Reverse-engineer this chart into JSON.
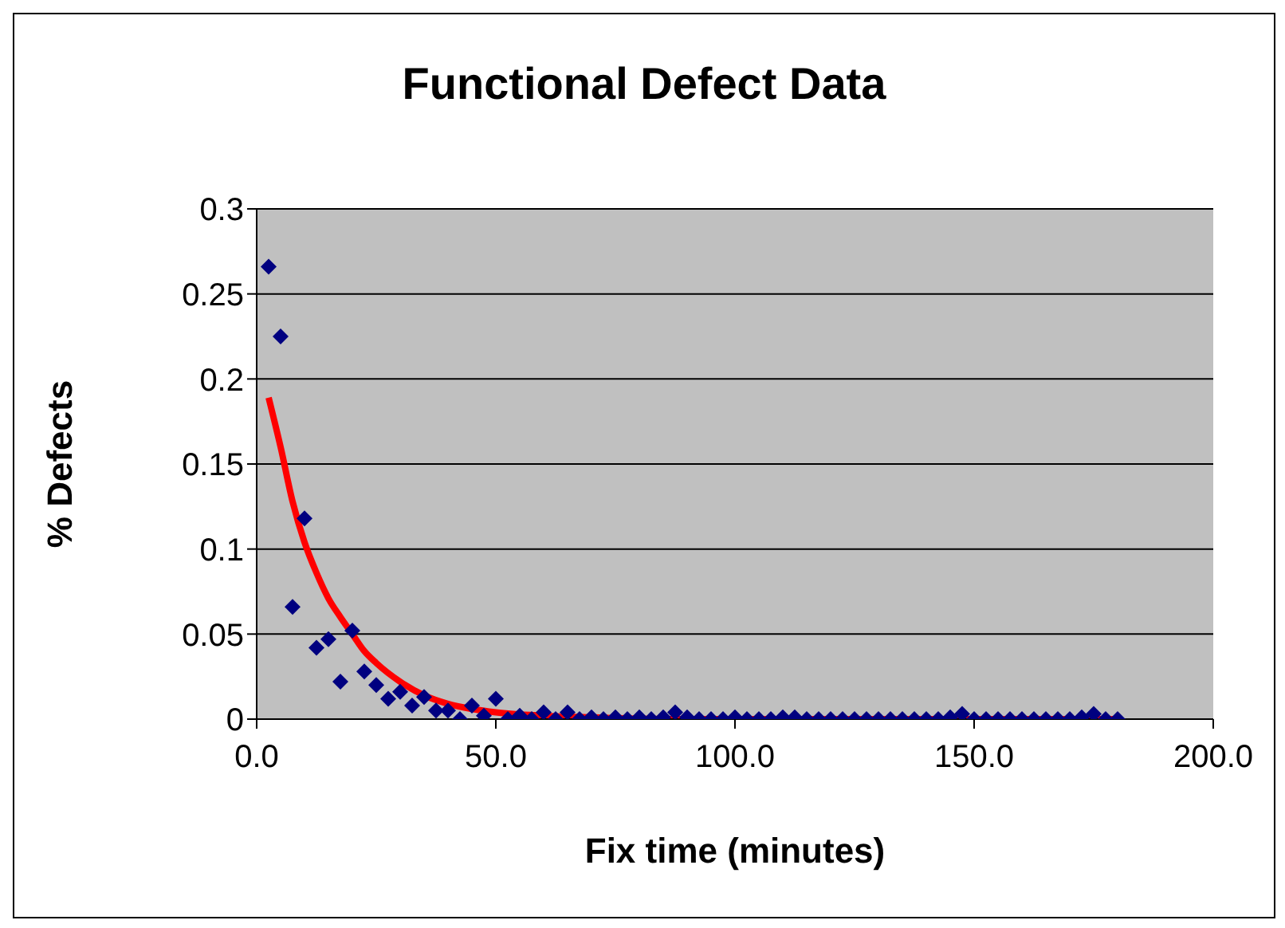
{
  "chart_data": {
    "type": "scatter",
    "title": "Functional Defect Data",
    "xlabel": "Fix time (minutes)",
    "ylabel": "% Defects",
    "xlim": [
      0,
      200
    ],
    "xticks": [
      {
        "value": 0,
        "label": "0.0"
      },
      {
        "value": 50,
        "label": "50.0"
      },
      {
        "value": 100,
        "label": "100.0"
      },
      {
        "value": 150,
        "label": "150.0"
      },
      {
        "value": 200,
        "label": "200.0"
      }
    ],
    "ylim": [
      0,
      0.3
    ],
    "yticks": [
      0,
      0.05,
      0.1,
      0.15,
      0.2,
      0.25,
      0.3
    ],
    "grid": "y",
    "legend": false,
    "series": [
      {
        "color": "#000080",
        "marker": "diamond",
        "x": [
          2.5,
          5,
          7.5,
          10,
          12.5,
          15,
          17.5,
          20,
          22.5,
          25,
          27.5,
          30,
          32.5,
          35,
          37.5,
          40,
          42.5,
          45,
          47.5,
          50,
          52.5,
          55,
          57.5,
          60,
          62.5,
          65,
          67.5,
          70,
          72.5,
          75,
          77.5,
          80,
          82.5,
          85,
          87.5,
          90,
          92.5,
          95,
          97.5,
          100,
          102.5,
          105,
          107.5,
          110,
          112.5,
          115,
          117.5,
          120,
          122.5,
          125,
          127.5,
          130,
          132.5,
          135,
          137.5,
          140,
          142.5,
          145,
          147.5,
          150,
          152.5,
          155,
          157.5,
          160,
          162.5,
          165,
          167.5,
          170,
          172.5,
          175,
          177.5,
          180
        ],
        "values": [
          0.266,
          0.225,
          0.066,
          0.118,
          0.042,
          0.047,
          0.022,
          0.052,
          0.028,
          0.02,
          0.012,
          0.016,
          0.008,
          0.013,
          0.005,
          0.005,
          0,
          0.008,
          0.002,
          0.012,
          0,
          0.002,
          0,
          0.004,
          0,
          0.004,
          0,
          0.001,
          0,
          0.001,
          0,
          0.001,
          0,
          0.001,
          0.004,
          0.001,
          0,
          0,
          0,
          0.001,
          0,
          0,
          0,
          0.001,
          0.001,
          0,
          0,
          0,
          0,
          0,
          0,
          0,
          0,
          0,
          0,
          0,
          0,
          0.001,
          0.003,
          0,
          0,
          0,
          0,
          0,
          0,
          0,
          0,
          0,
          0.001,
          0.003,
          0,
          0
        ]
      },
      {
        "type": "line",
        "color": "#ff0000",
        "marker": "none",
        "x": [
          2.5,
          5,
          7.5,
          10,
          12.5,
          15,
          17.5,
          20,
          22.5,
          25,
          30,
          35,
          40,
          45,
          50,
          60,
          70,
          90,
          120,
          150,
          180
        ],
        "values": [
          0.189,
          0.16,
          0.128,
          0.104,
          0.086,
          0.071,
          0.06,
          0.05,
          0.04,
          0.033,
          0.022,
          0.014,
          0.009,
          0.006,
          0.004,
          0.002,
          0.001,
          0,
          0,
          0,
          0
        ]
      }
    ]
  }
}
